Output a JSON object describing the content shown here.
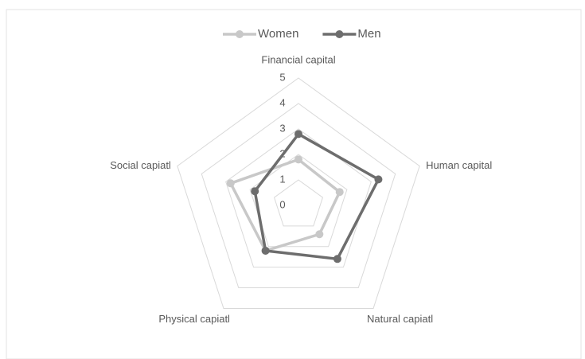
{
  "chart_data": {
    "type": "radar",
    "categories": [
      "Financial capital",
      "Human capital",
      "Natural capiatl",
      "Physical capiatl",
      "Social capiatl"
    ],
    "series": [
      {
        "name": "Women",
        "color": "#c8c8c8",
        "values": [
          1.8,
          1.7,
          1.4,
          2.2,
          2.8
        ]
      },
      {
        "name": "Men",
        "color": "#6d6d6d",
        "values": [
          2.8,
          3.3,
          2.6,
          2.2,
          1.8
        ]
      }
    ],
    "ylim": [
      0,
      5
    ],
    "yticks": [
      0,
      1,
      2,
      3,
      4,
      5
    ],
    "grid": true,
    "legend": "top"
  }
}
